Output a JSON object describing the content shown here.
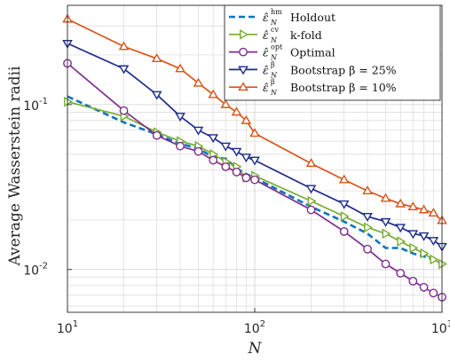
{
  "chart_data": {
    "type": "line",
    "xscale": "log",
    "yscale": "log",
    "xlim": [
      10,
      1000
    ],
    "ylim": [
      0.0055,
      0.4
    ],
    "grid": true,
    "xlabel": "N",
    "ylabel": "Average Wasserstein radii",
    "x_ticks": [
      {
        "base": "10",
        "exp": "1"
      },
      {
        "base": "10",
        "exp": "2"
      },
      {
        "base": "10",
        "exp": "3"
      }
    ],
    "y_ticks": [
      {
        "value": 0.01,
        "base": "10",
        "exp": "-2"
      },
      {
        "value": 0.1,
        "base": "10",
        "exp": "-1"
      }
    ],
    "legend_position": "top-right",
    "series": [
      {
        "name": "Holdout",
        "sup": "hm",
        "color": "#0f72bd",
        "dash": "7,4",
        "marker": "none",
        "x": [
          10,
          20,
          30,
          40,
          50,
          60,
          70,
          80,
          90,
          100,
          200,
          300,
          400,
          500,
          600,
          700,
          800,
          900,
          1000
        ],
        "y": [
          0.112,
          0.078,
          0.066,
          0.058,
          0.054,
          0.048,
          0.047,
          0.041,
          0.038,
          0.036,
          0.024,
          0.0195,
          0.0165,
          0.0135,
          0.0135,
          0.0125,
          0.012,
          0.0115,
          0.0108
        ]
      },
      {
        "name": "k-fold",
        "sup": "cv",
        "color": "#77ac30",
        "dash": "",
        "marker": "triangle-right",
        "x": [
          10,
          20,
          30,
          40,
          50,
          60,
          70,
          80,
          90,
          100,
          200,
          300,
          400,
          500,
          600,
          700,
          800,
          900,
          1000
        ],
        "y": [
          0.104,
          0.085,
          0.068,
          0.06,
          0.056,
          0.05,
          0.045,
          0.042,
          0.036,
          0.037,
          0.026,
          0.021,
          0.018,
          0.0165,
          0.0148,
          0.0135,
          0.0125,
          0.0115,
          0.0108
        ]
      },
      {
        "name": "Optimal",
        "sup": "opt",
        "color": "#7e2f8e",
        "dash": "",
        "marker": "circle",
        "x": [
          10,
          20,
          30,
          40,
          50,
          60,
          70,
          80,
          90,
          100,
          200,
          300,
          400,
          500,
          600,
          700,
          800,
          900,
          1000
        ],
        "y": [
          0.178,
          0.092,
          0.065,
          0.056,
          0.052,
          0.046,
          0.042,
          0.039,
          0.036,
          0.035,
          0.023,
          0.017,
          0.0133,
          0.0108,
          0.0095,
          0.0085,
          0.0078,
          0.0072,
          0.0068
        ]
      },
      {
        "name": "Bootstrap β = 25%",
        "sup": "β",
        "color": "#1b2a8a",
        "dash": "",
        "marker": "triangle-down",
        "x": [
          10,
          20,
          30,
          40,
          50,
          60,
          70,
          80,
          90,
          100,
          200,
          300,
          400,
          500,
          600,
          700,
          800,
          900,
          1000
        ],
        "y": [
          0.235,
          0.165,
          0.115,
          0.085,
          0.07,
          0.063,
          0.056,
          0.052,
          0.048,
          0.046,
          0.031,
          0.025,
          0.021,
          0.0195,
          0.018,
          0.0165,
          0.016,
          0.015,
          0.0138
        ]
      },
      {
        "name": "Bootstrap β = 10%",
        "sup": "β",
        "color": "#d95319",
        "dash": "",
        "marker": "triangle-up",
        "x": [
          10,
          20,
          30,
          40,
          50,
          60,
          70,
          80,
          90,
          100,
          200,
          300,
          400,
          500,
          600,
          700,
          800,
          900,
          1000
        ],
        "y": [
          0.33,
          0.225,
          0.19,
          0.165,
          0.135,
          0.115,
          0.1,
          0.09,
          0.08,
          0.067,
          0.044,
          0.035,
          0.03,
          0.027,
          0.025,
          0.024,
          0.023,
          0.022,
          0.0198
        ]
      }
    ]
  }
}
